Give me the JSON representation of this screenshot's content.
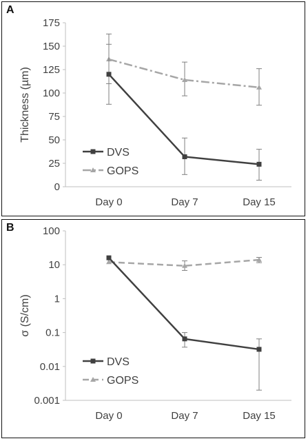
{
  "panels": [
    {
      "letter": "A"
    },
    {
      "letter": "B"
    }
  ],
  "chart_data": [
    {
      "type": "line",
      "categories": [
        "Day 0",
        "Day 7",
        "Day 15"
      ],
      "ylabel": "Thickness (µm)",
      "ylim": [
        0,
        175
      ],
      "yticks": [
        0,
        25,
        50,
        75,
        100,
        125,
        150,
        175
      ],
      "ytick_labels": [
        "0",
        "25",
        "50",
        "75",
        "100",
        "125",
        "150",
        "175"
      ],
      "yscale": "linear",
      "legend_position": "lower-left",
      "grid": false,
      "series": [
        {
          "name": "DVS",
          "values": [
            120,
            32,
            24
          ],
          "err_low": [
            88,
            13,
            7
          ],
          "err_high": [
            152,
            52,
            40
          ],
          "color": "#404040",
          "marker": "square",
          "dash": "solid"
        },
        {
          "name": "GOPS",
          "values": [
            136,
            114,
            106
          ],
          "err_low": [
            110,
            97,
            87
          ],
          "err_high": [
            163,
            133,
            126
          ],
          "color": "#a6a6a6",
          "marker": "triangle",
          "dash": "dashdot"
        }
      ]
    },
    {
      "type": "line",
      "categories": [
        "Day 0",
        "Day 7",
        "Day 15"
      ],
      "ylabel": "σ (S/cm)",
      "ylim": [
        0.001,
        100
      ],
      "yticks": [
        0.001,
        0.01,
        0.1,
        1,
        10,
        100
      ],
      "ytick_labels": [
        "0.001",
        "0.01",
        "0.1",
        "1",
        "10",
        "100"
      ],
      "yscale": "log",
      "legend_position": "lower-left",
      "grid": false,
      "series": [
        {
          "name": "DVS",
          "values": [
            16,
            0.065,
            0.032
          ],
          "err_low": [
            16,
            0.037,
            0.002
          ],
          "err_high": [
            16,
            0.1,
            0.065
          ],
          "color": "#404040",
          "marker": "square",
          "dash": "solid"
        },
        {
          "name": "GOPS",
          "values": [
            12,
            9.3,
            14
          ],
          "err_low": [
            12,
            6.8,
            11.5
          ],
          "err_high": [
            12,
            13,
            16.5
          ],
          "color": "#a6a6a6",
          "marker": "triangle",
          "dash": "dashed"
        }
      ]
    }
  ]
}
